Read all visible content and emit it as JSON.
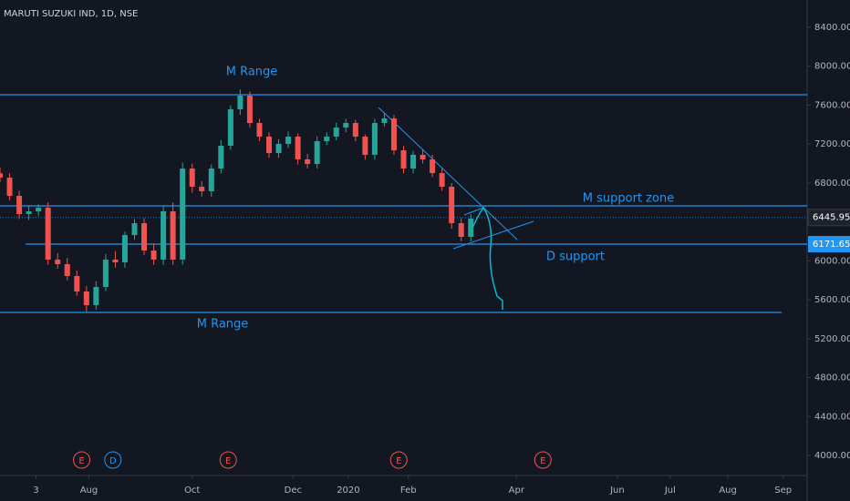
{
  "chart_data": {
    "type": "candlestick",
    "title": "MARUTI SUZUKI IND, 1D, NSE",
    "x": [
      0,
      4,
      8,
      12,
      16,
      20,
      24,
      28,
      32,
      36,
      40,
      44,
      48,
      52,
      56,
      60,
      64,
      68,
      72,
      76,
      80,
      84,
      88,
      92,
      96,
      100,
      104,
      108,
      112,
      116,
      120,
      124,
      128,
      132,
      136,
      140,
      144,
      148,
      152,
      156,
      160,
      164,
      168,
      172,
      176,
      180,
      184,
      188,
      192,
      196
    ],
    "open": [
      6900,
      6855,
      6668,
      6481,
      6509,
      6546,
      6013,
      5966,
      5844,
      5685,
      5545,
      5732,
      6013,
      5985,
      6265,
      6387,
      6106,
      6013,
      6509,
      6013,
      6949,
      6762,
      6715,
      6949,
      7183,
      7558,
      7698,
      7417,
      7277,
      7108,
      7202,
      7277,
      7043,
      6996,
      7230,
      7277,
      7370,
      7417,
      7277,
      7090,
      7417,
      7464,
      7136,
      6949,
      7090,
      7043,
      6902,
      6762,
      6387,
      6247
    ],
    "high": [
      6960,
      6900,
      6720,
      6560,
      6580,
      6600,
      6080,
      6030,
      5900,
      5740,
      5790,
      6070,
      6100,
      6300,
      6430,
      6440,
      6180,
      6560,
      6600,
      7010,
      7000,
      6820,
      6990,
      7240,
      7600,
      7760,
      7740,
      7460,
      7320,
      7250,
      7330,
      7310,
      7100,
      7280,
      7320,
      7420,
      7460,
      7450,
      7300,
      7460,
      7520,
      7500,
      7180,
      7130,
      7140,
      7090,
      6950,
      6800,
      6440,
      6480
    ],
    "low": [
      6810,
      6620,
      6430,
      6420,
      6460,
      5960,
      5920,
      5800,
      5640,
      5480,
      5500,
      5690,
      5930,
      5930,
      6220,
      6060,
      5960,
      5960,
      5960,
      5960,
      6700,
      6660,
      6660,
      6900,
      7140,
      7500,
      7370,
      7230,
      7060,
      7060,
      7160,
      6990,
      6950,
      6950,
      7190,
      7240,
      7320,
      7230,
      7040,
      7040,
      7380,
      7090,
      6900,
      6900,
      7000,
      6860,
      6720,
      6330,
      6200,
      6200
    ],
    "close": [
      6855,
      6668,
      6481,
      6509,
      6546,
      6013,
      5966,
      5844,
      5685,
      5545,
      5732,
      6013,
      5985,
      6265,
      6387,
      6106,
      6013,
      6509,
      6013,
      6949,
      6762,
      6715,
      6949,
      7183,
      7558,
      7698,
      7417,
      7277,
      7108,
      7202,
      7277,
      7043,
      6996,
      7230,
      7277,
      7370,
      7417,
      7277,
      7090,
      7417,
      7464,
      7136,
      6949,
      7090,
      7043,
      6902,
      6762,
      6387,
      6247,
      6434
    ],
    "up_color": "#26a69a",
    "down_color": "#ef5350",
    "xlim": [
      0,
      336
    ],
    "xticks": [
      {
        "value": 15,
        "label": "3"
      },
      {
        "value": 37,
        "label": "Aug"
      },
      {
        "value": 80,
        "label": "Oct"
      },
      {
        "value": 122,
        "label": "Dec"
      },
      {
        "value": 145,
        "label": "2020"
      },
      {
        "value": 170,
        "label": "Feb"
      },
      {
        "value": 215,
        "label": "Apr"
      },
      {
        "value": 257,
        "label": "Jun"
      },
      {
        "value": 279,
        "label": "Jul"
      },
      {
        "value": 303,
        "label": "Aug"
      },
      {
        "value": 326,
        "label": "Sep"
      }
    ],
    "ylim": [
      3794,
      8681
    ],
    "yticks": [
      {
        "value": 4000,
        "label": "4000.00"
      },
      {
        "value": 4400,
        "label": "4400.00"
      },
      {
        "value": 4800,
        "label": "4800.00"
      },
      {
        "value": 5200,
        "label": "5200.00"
      },
      {
        "value": 5600,
        "label": "5600.00"
      },
      {
        "value": 6000,
        "label": "6000.00"
      },
      {
        "value": 6400,
        "label": "6400.00"
      },
      {
        "value": 6800,
        "label": "6800.00"
      },
      {
        "value": 7200,
        "label": "7200.00"
      },
      {
        "value": 7600,
        "label": "7600.00"
      },
      {
        "value": 8000,
        "label": "8000.00"
      },
      {
        "value": 8400,
        "label": "8400.00"
      }
    ],
    "last_price": 6445.95,
    "levels": [
      {
        "label": "M Range",
        "value": 7707
      },
      {
        "label": "M support zone",
        "value": 6565
      },
      {
        "label": "D support",
        "value": 6171.65
      },
      {
        "label": "M Range",
        "value": 5470
      }
    ],
    "events": [
      {
        "label": "E",
        "x": 34
      },
      {
        "label": "D",
        "x": 47
      },
      {
        "label": "E",
        "x": 95
      },
      {
        "label": "E",
        "x": 166
      },
      {
        "label": "E",
        "x": 226
      }
    ]
  }
}
